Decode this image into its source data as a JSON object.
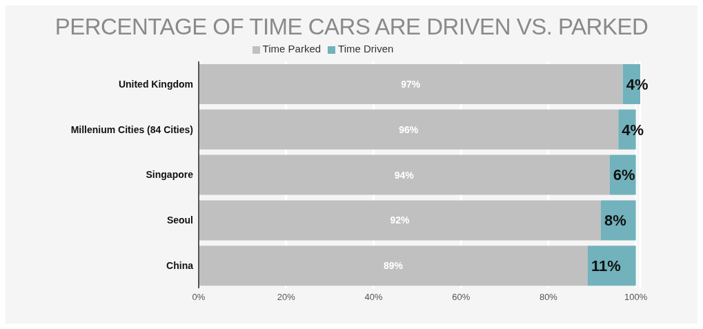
{
  "chart_data": {
    "type": "bar",
    "orientation": "horizontal",
    "stacked": true,
    "title": "PERCENTAGE OF TIME CARS ARE DRIVEN VS. PARKED",
    "categories": [
      "United Kingdom",
      "Millenium Cities (84 Cities)",
      "Singapore",
      "Seoul",
      "China"
    ],
    "series": [
      {
        "name": "Time Parked",
        "color": "#c0c0c0",
        "values": [
          97,
          96,
          94,
          92,
          89
        ],
        "value_labels": [
          "97%",
          "96%",
          "94%",
          "92%",
          "89%"
        ]
      },
      {
        "name": "Time Driven",
        "color": "#72b2bc",
        "values": [
          4,
          4,
          6,
          8,
          11
        ],
        "value_labels": [
          "4%",
          "4%",
          "6%",
          "8%",
          "11%"
        ]
      }
    ],
    "xlim": [
      0,
      101
    ],
    "xticks": [
      {
        "value": 0,
        "label": "0%"
      },
      {
        "value": 20,
        "label": "20%"
      },
      {
        "value": 40,
        "label": "40%"
      },
      {
        "value": 60,
        "label": "60%"
      },
      {
        "value": 80,
        "label": "80%"
      },
      {
        "value": 100,
        "label": "100%"
      }
    ],
    "grid": "x",
    "legend": "top"
  }
}
